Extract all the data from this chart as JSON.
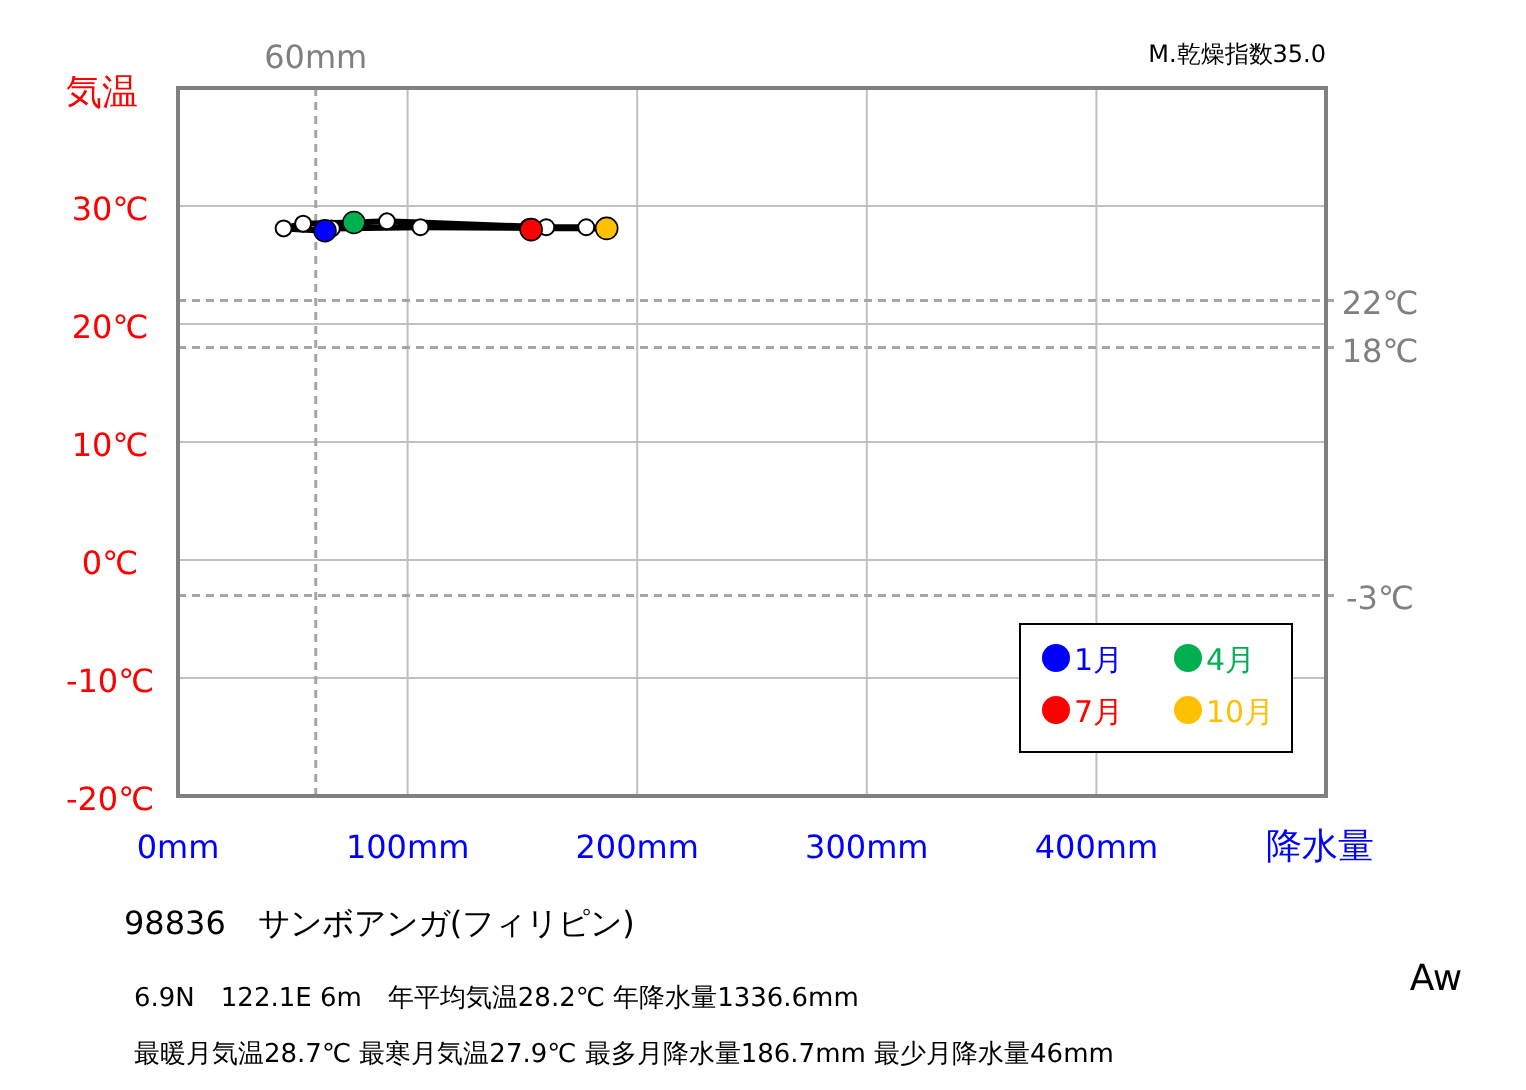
{
  "chart_data": {
    "type": "line",
    "xlabel": "降水量",
    "ylabel": "気温",
    "title": "98836　サンボアンガ(フィリピン)",
    "annotations": [
      "M.乾燥指数35.0",
      "6.9N　122.1E 6m　年平均気温28.2℃ 年降水量1336.6mm",
      "最暖月気温28.7℃ 最寒月気温27.9℃ 最多月降水量186.7mm 最少月降水量46mm",
      "Aw"
    ],
    "xlim": [
      0,
      500
    ],
    "ylim": [
      -20,
      40
    ],
    "xticks": [
      {
        "value": 0,
        "label": "0mm"
      },
      {
        "value": 100,
        "label": "100mm"
      },
      {
        "value": 200,
        "label": "200mm"
      },
      {
        "value": 300,
        "label": "300mm"
      },
      {
        "value": 400,
        "label": "400mm"
      },
      {
        "value": 500,
        "label": null
      }
    ],
    "yticks": [
      {
        "value": -20,
        "label": "-20℃"
      },
      {
        "value": -10,
        "label": "-10℃"
      },
      {
        "value": 0,
        "label": "0℃"
      },
      {
        "value": 10,
        "label": "10℃"
      },
      {
        "value": 20,
        "label": "20℃"
      },
      {
        "value": 30,
        "label": "30℃"
      },
      {
        "value": 40,
        "label": null
      }
    ],
    "grid": true,
    "legend": "bottom right",
    "marker": "circle",
    "series": [
      {
        "color": "#000000",
        "x": [
          64,
          46,
          54.5,
          76.6,
          91,
          160.4,
          153.8,
          152.6,
          177.8,
          186.7,
          105.6,
          67
        ],
        "values": [
          27.9,
          28.1,
          28.5,
          28.6,
          28.7,
          28.2,
          28.0,
          28.2,
          28.2,
          28.1,
          28.2,
          28.1
        ],
        "colors": [
          null,
          "#ffffff",
          "#ffffff",
          null,
          "#ffffff",
          "#ffffff",
          null,
          "#ffffff",
          "#ffffff",
          null,
          "#ffffff",
          "#ffffff"
        ]
      },
      {
        "type": "scatter",
        "name": "1月",
        "color": "#0000ff",
        "x": [
          64
        ],
        "values": [
          27.9
        ]
      },
      {
        "type": "scatter",
        "name": "4月",
        "color": "#00b050",
        "x": [
          76.6
        ],
        "values": [
          28.6
        ]
      },
      {
        "type": "scatter",
        "name": "7月",
        "color": "#ff0000",
        "x": [
          153.8
        ],
        "values": [
          28.0
        ]
      },
      {
        "type": "scatter",
        "name": "10月",
        "color": "#ffc000",
        "x": [
          186.7
        ],
        "values": [
          28.1
        ]
      }
    ],
    "ref_lines": [
      {
        "axis": "x",
        "value": 60,
        "label": "60mm",
        "color": "#a6a6a6",
        "line_style": "dashed"
      },
      {
        "axis": "y",
        "value": 22,
        "label": "22℃",
        "color": "#a6a6a6",
        "line_style": "dashed"
      },
      {
        "axis": "y",
        "value": 18,
        "label": "18℃",
        "color": "#a6a6a6",
        "line_style": "dashed"
      },
      {
        "axis": "y",
        "value": -3,
        "label": "-3℃",
        "color": "#a6a6a6",
        "line_style": "dashed"
      }
    ]
  }
}
